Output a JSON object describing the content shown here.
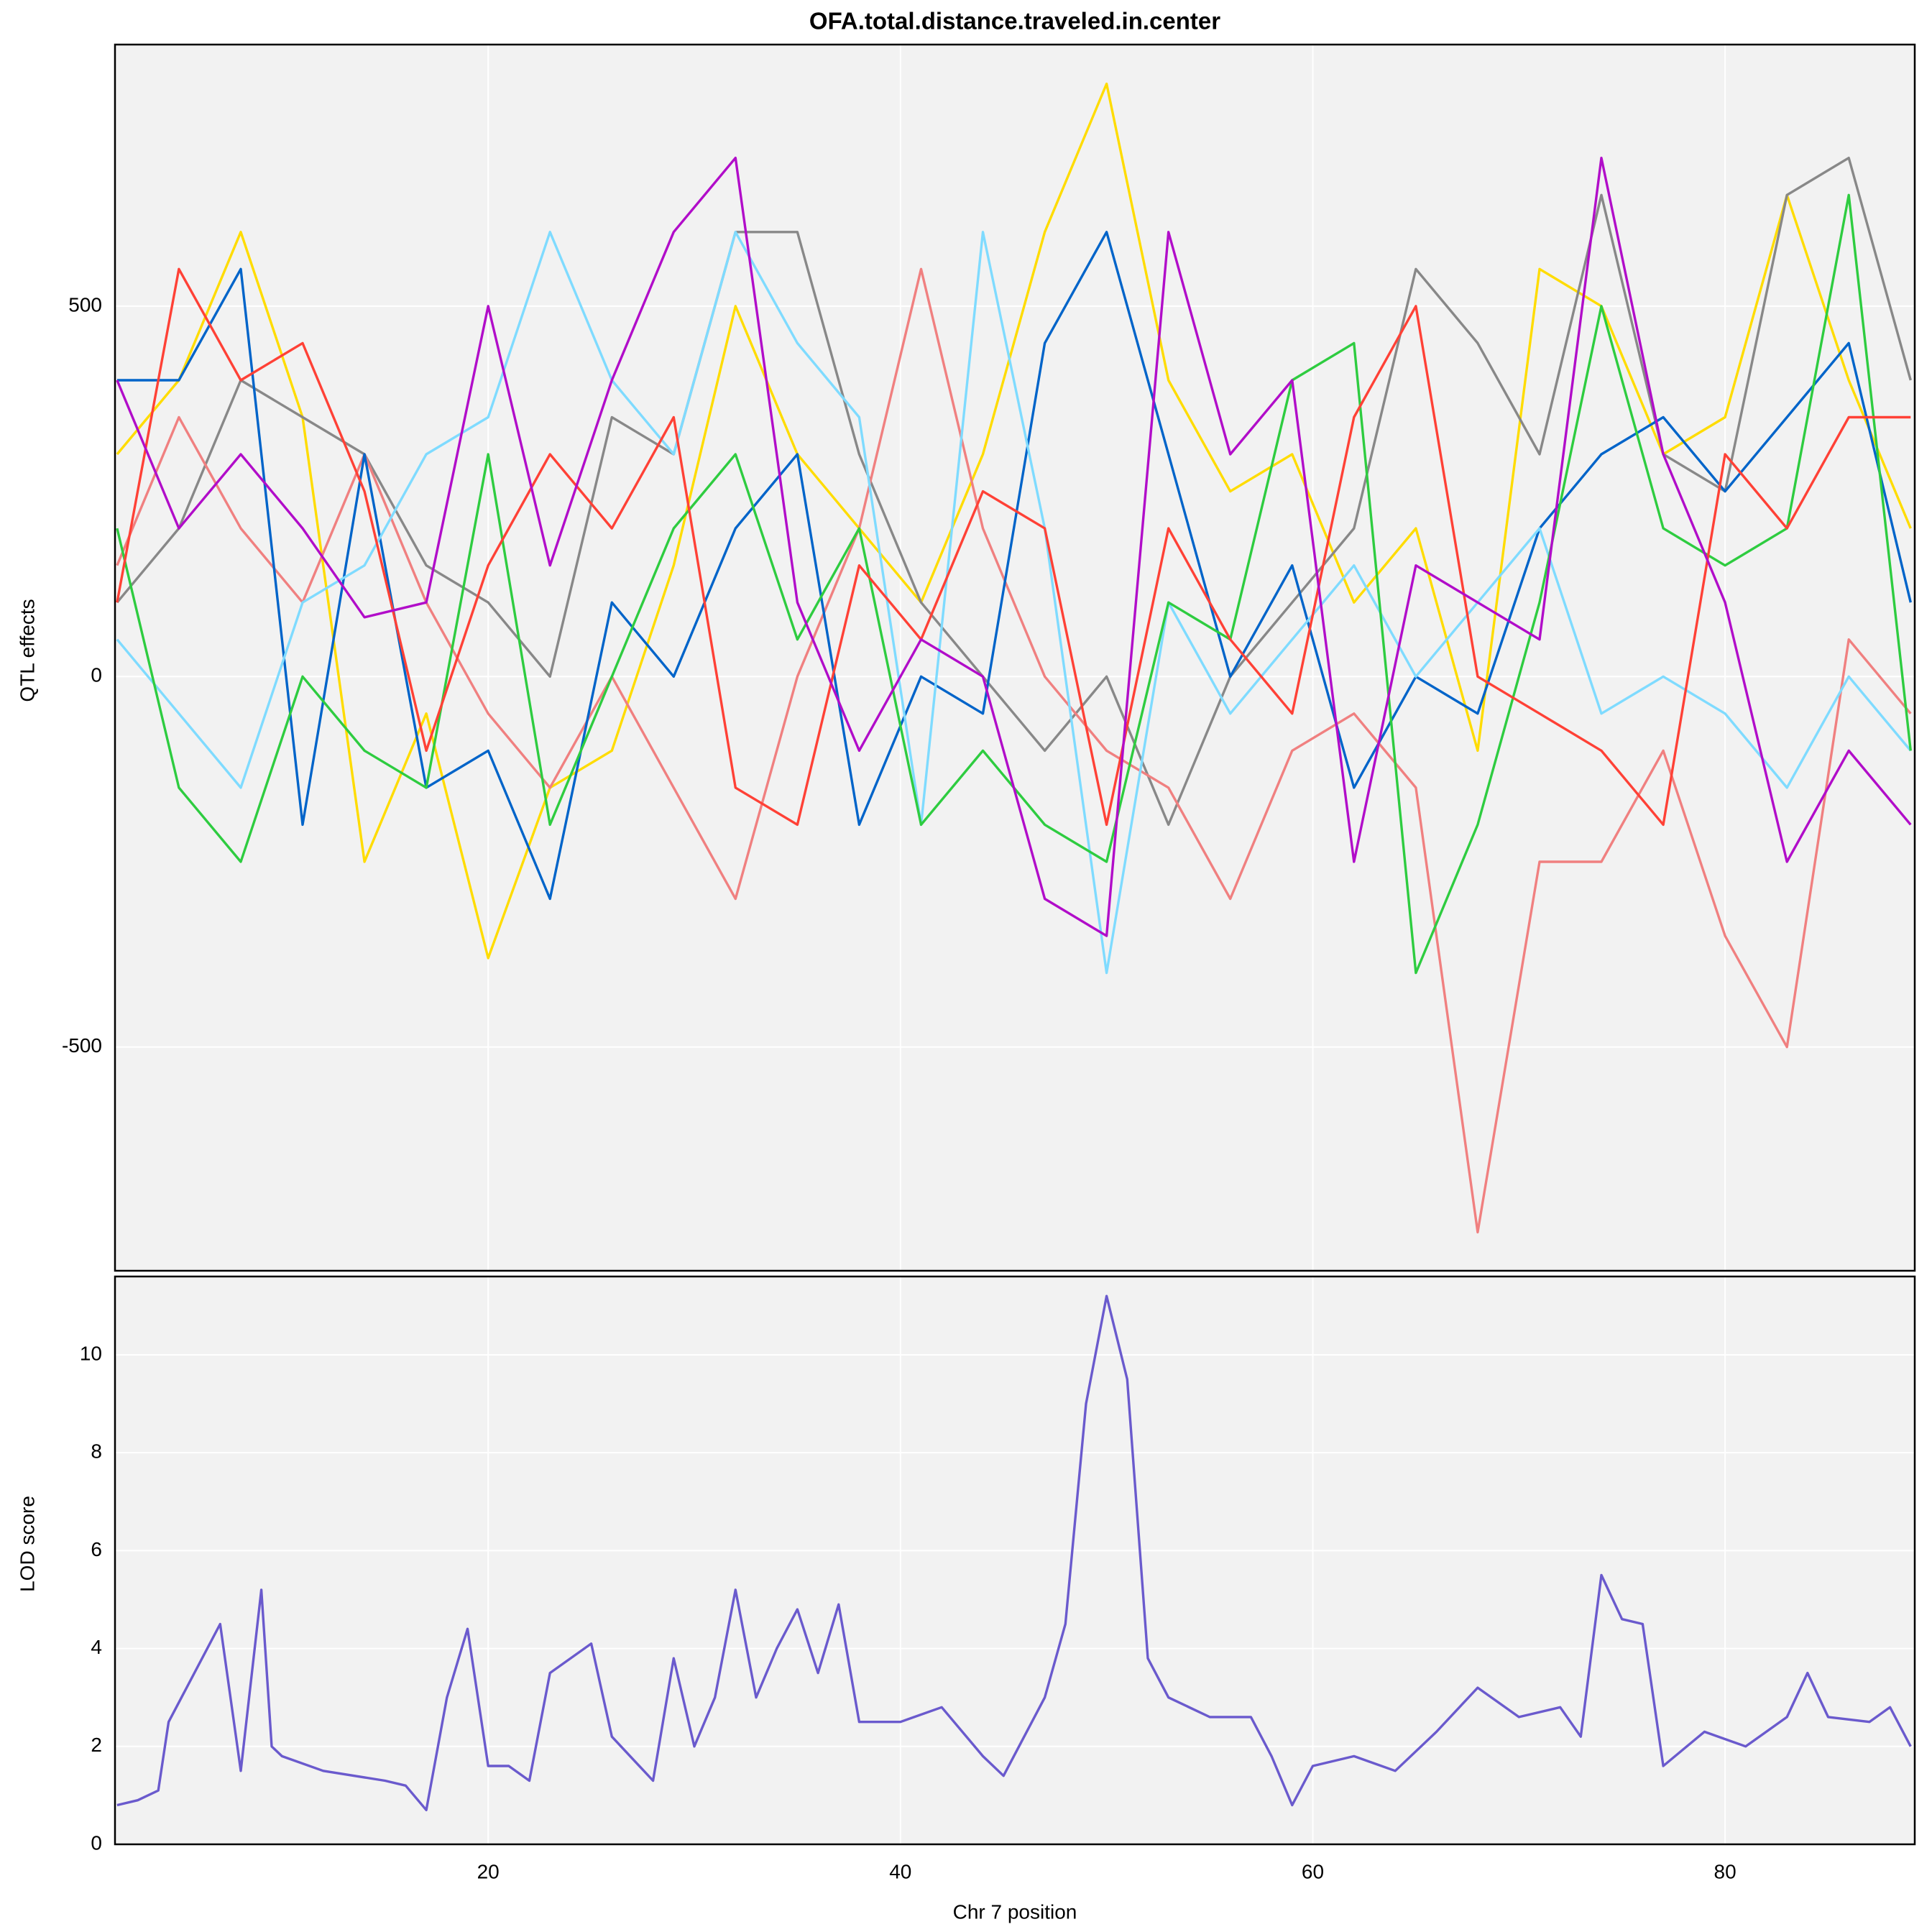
{
  "chart_data": [
    {
      "type": "line",
      "title": "OFA.total.distance.traveled.in.center",
      "ylabel": "QTL effects",
      "x": [
        2,
        5,
        8,
        11,
        14,
        17,
        20,
        23,
        26,
        29,
        32,
        35,
        38,
        41,
        44,
        47,
        50,
        53,
        56,
        59,
        62,
        65,
        68,
        71,
        74,
        77,
        80,
        83,
        86,
        89
      ],
      "series": [
        {
          "color": "#FFDC00",
          "values": [
            300,
            400,
            600,
            350,
            -250,
            -50,
            -380,
            -150,
            -100,
            150,
            500,
            300,
            200,
            100,
            300,
            600,
            800,
            400,
            250,
            300,
            100,
            200,
            -100,
            550,
            500,
            300,
            350,
            650,
            400,
            200
          ]
        },
        {
          "color": "#888888",
          "values": [
            100,
            200,
            400,
            350,
            300,
            150,
            100,
            0,
            350,
            300,
            600,
            600,
            300,
            100,
            0,
            -100,
            0,
            -200,
            0,
            100,
            200,
            550,
            450,
            300,
            650,
            300,
            250,
            650,
            700,
            400
          ]
        },
        {
          "color": "#F08080",
          "values": [
            150,
            350,
            200,
            100,
            300,
            100,
            -50,
            -150,
            0,
            -150,
            -300,
            0,
            200,
            550,
            200,
            0,
            -100,
            -150,
            -300,
            -100,
            -50,
            -150,
            -750,
            -250,
            -250,
            -100,
            -350,
            -500,
            50,
            -50
          ]
        },
        {
          "color": "#0064C9",
          "values": [
            400,
            400,
            550,
            -200,
            300,
            -150,
            -100,
            -300,
            100,
            0,
            200,
            300,
            -200,
            0,
            -50,
            450,
            600,
            300,
            0,
            150,
            -150,
            0,
            -50,
            200,
            300,
            350,
            250,
            350,
            450,
            100
          ]
        },
        {
          "color": "#7FDBFF",
          "values": [
            50,
            -50,
            -150,
            100,
            150,
            300,
            350,
            600,
            400,
            300,
            600,
            450,
            350,
            -200,
            600,
            200,
            -400,
            100,
            -50,
            50,
            150,
            0,
            100,
            200,
            -50,
            0,
            -50,
            -150,
            0,
            -100
          ]
        },
        {
          "color": "#2ECC40",
          "values": [
            200,
            -150,
            -250,
            0,
            -100,
            -150,
            300,
            -200,
            0,
            200,
            300,
            50,
            200,
            -200,
            -100,
            -200,
            -250,
            100,
            50,
            400,
            450,
            -400,
            -200,
            100,
            500,
            200,
            150,
            200,
            650,
            -100
          ]
        },
        {
          "color": "#FF4136",
          "values": [
            100,
            550,
            400,
            450,
            250,
            -100,
            150,
            300,
            200,
            350,
            -150,
            -200,
            150,
            50,
            250,
            200,
            -200,
            200,
            50,
            -50,
            350,
            500,
            0,
            -50,
            -100,
            -200,
            300,
            200,
            350,
            350
          ]
        },
        {
          "color": "#B10DC9",
          "values": [
            400,
            200,
            300,
            200,
            80,
            100,
            500,
            150,
            400,
            600,
            700,
            100,
            -100,
            50,
            0,
            -300,
            -350,
            600,
            300,
            400,
            -250,
            150,
            100,
            50,
            700,
            300,
            100,
            -250,
            -100,
            -200
          ]
        }
      ],
      "xlim": [
        1.9,
        89.2
      ],
      "ylim": [
        -802,
        853
      ],
      "yticks": [
        -500,
        0,
        500
      ],
      "grid": true
    },
    {
      "type": "line",
      "xlabel": "Chr 7 position",
      "ylabel": "LOD score",
      "x": [
        2,
        3,
        4,
        4.5,
        7,
        8,
        9,
        9.5,
        10,
        12,
        15,
        16,
        17,
        18,
        19,
        20,
        21,
        22,
        23,
        25,
        26,
        28,
        29,
        30,
        31,
        32,
        33,
        34,
        35,
        36,
        37,
        38,
        40,
        42,
        44,
        45,
        46,
        47,
        48,
        49,
        50,
        51,
        52,
        53,
        55,
        57,
        58,
        59,
        60,
        62,
        64,
        66,
        68,
        70,
        72,
        73,
        74,
        75,
        76,
        77,
        79,
        81,
        83,
        84,
        85,
        87,
        88,
        89
      ],
      "series": [
        {
          "color": "#6A5ACD",
          "values": [
            0.8,
            0.9,
            1.1,
            2.5,
            4.5,
            1.5,
            5.2,
            2.0,
            1.8,
            1.5,
            1.3,
            1.2,
            0.7,
            3.0,
            4.4,
            1.6,
            1.6,
            1.3,
            3.5,
            4.1,
            2.2,
            1.3,
            3.8,
            2.0,
            3.0,
            5.2,
            3.0,
            4.0,
            4.8,
            3.5,
            4.9,
            2.5,
            2.5,
            2.8,
            1.8,
            1.4,
            2.2,
            3.0,
            4.5,
            9.0,
            11.2,
            9.5,
            3.8,
            3.0,
            2.6,
            2.6,
            1.8,
            0.8,
            1.6,
            1.8,
            1.5,
            2.3,
            3.2,
            2.6,
            2.8,
            2.2,
            5.5,
            4.6,
            4.5,
            1.6,
            2.3,
            2.0,
            2.6,
            3.5,
            2.6,
            2.5,
            2.8,
            2.0
          ]
        }
      ],
      "xlim": [
        1.9,
        89.2
      ],
      "ylim": [
        0,
        11.6
      ],
      "xticks": [
        20,
        40,
        60,
        80
      ],
      "yticks": [
        0,
        2,
        4,
        6,
        8,
        10
      ],
      "grid": true
    }
  ]
}
